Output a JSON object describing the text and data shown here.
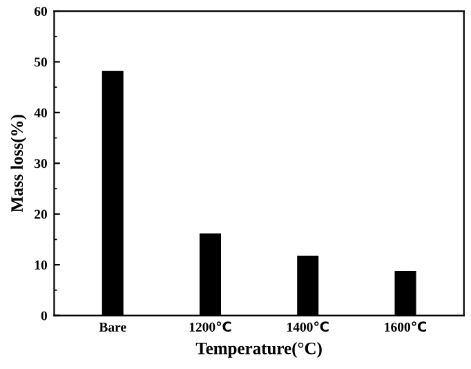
{
  "chart_data": {
    "type": "bar",
    "xlabel": "Temperature(°C)",
    "ylabel": "Mass loss(%)",
    "categories": [
      "Bare",
      "1200℃",
      "1400℃",
      "1600℃"
    ],
    "values": [
      48,
      16,
      11.6,
      8.6
    ],
    "color": "#000000",
    "ylim": [
      0,
      60
    ],
    "yticks": [
      0,
      10,
      20,
      30,
      40,
      50,
      60
    ],
    "grid": false,
    "legend": false
  }
}
